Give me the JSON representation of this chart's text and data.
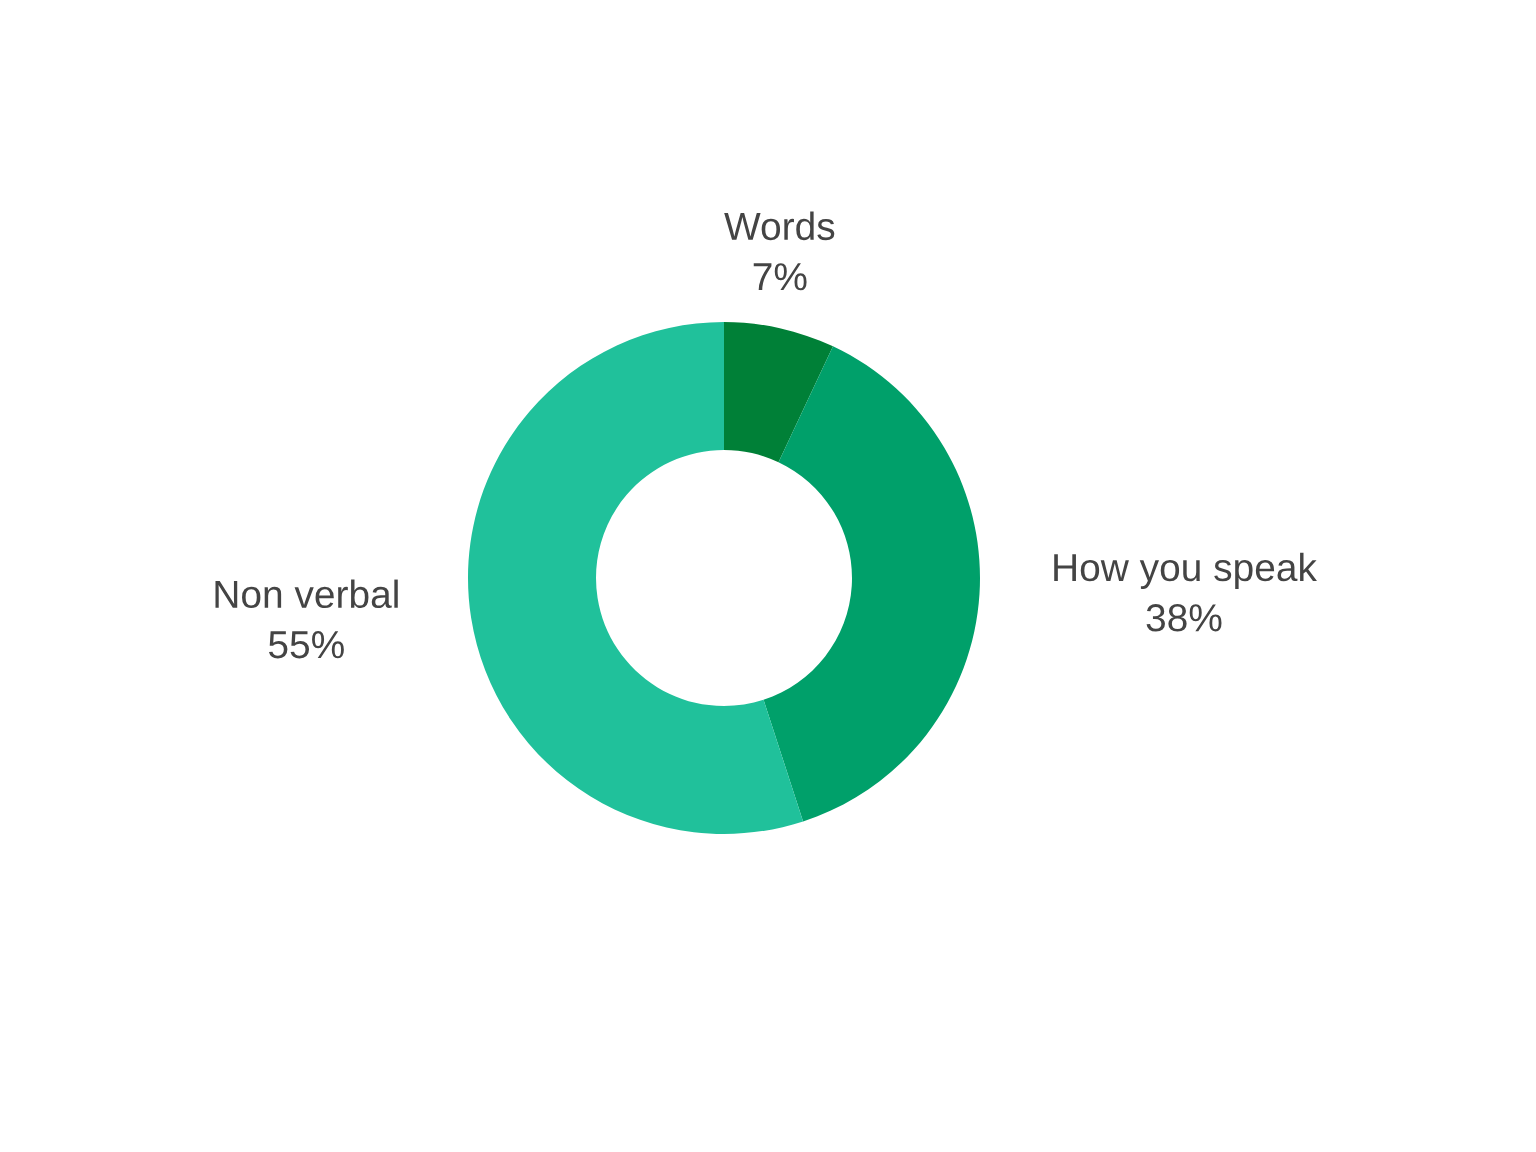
{
  "chart_data": {
    "type": "donut",
    "categories": [
      "Words",
      "How you speak",
      "Non verbal"
    ],
    "values": [
      7,
      38,
      55
    ],
    "colors": [
      "#008037",
      "#00a06a",
      "#20c19b"
    ],
    "value_labels": [
      "7%",
      "38%",
      "55%"
    ],
    "legend": false
  }
}
